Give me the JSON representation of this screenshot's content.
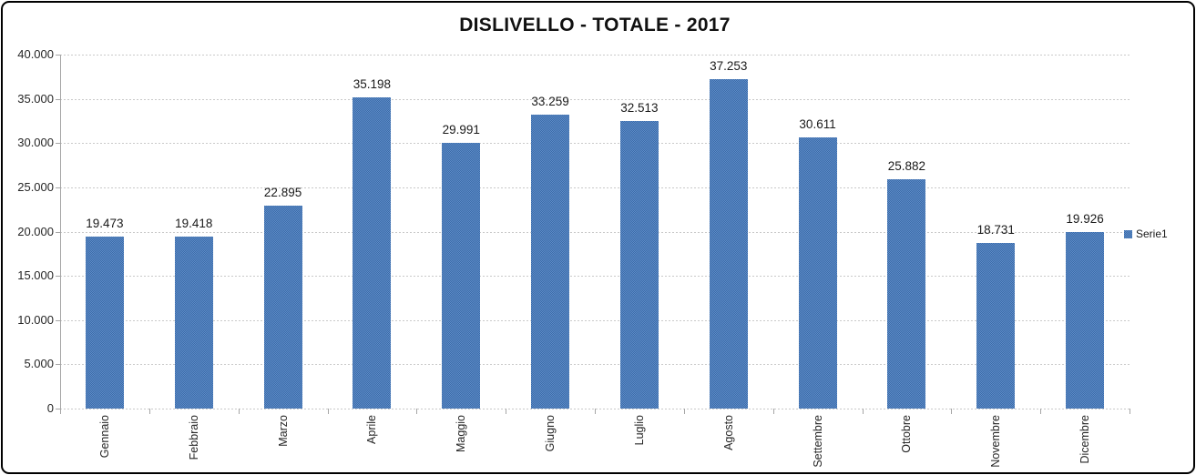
{
  "frame": {
    "background": "#ffffff",
    "border_color": "#000000"
  },
  "chart_data": {
    "type": "bar",
    "title": "DISLIVELLO - TOTALE - 2017",
    "categories": [
      "Gennaio",
      "Febbraio",
      "Marzo",
      "Aprile",
      "Maggio",
      "Giugno",
      "Luglio",
      "Agosto",
      "Settembre",
      "Ottobre",
      "Novembre",
      "Dicembre"
    ],
    "series": [
      {
        "name": "Serie1",
        "values": [
          19473,
          19418,
          22895,
          35198,
          29991,
          33259,
          32513,
          37253,
          30611,
          25882,
          18731,
          19926
        ],
        "color": "#4a7bb8"
      }
    ],
    "value_labels": [
      "19.473",
      "19.418",
      "22.895",
      "35.198",
      "29.991",
      "33.259",
      "32.513",
      "37.253",
      "30.611",
      "25.882",
      "18.731",
      "19.926"
    ],
    "xlabel": "",
    "ylabel": "",
    "y_axis": {
      "min": 0,
      "max": 40000,
      "tick_step": 5000,
      "tick_labels": [
        "40.000",
        "35.000",
        "30.000",
        "25.000",
        "20.000",
        "15.000",
        "10.000",
        "5.000",
        "0"
      ]
    },
    "grid": true,
    "gridline_style": "dotted",
    "legend": {
      "label": "Serie1",
      "position": "right"
    },
    "colors": {
      "bar_light": "#5f8cc8",
      "bar_dark": "#3a6ba8",
      "gridline": "#c9c9c9",
      "axis": "#a6a6a6",
      "text": "#262626"
    }
  }
}
